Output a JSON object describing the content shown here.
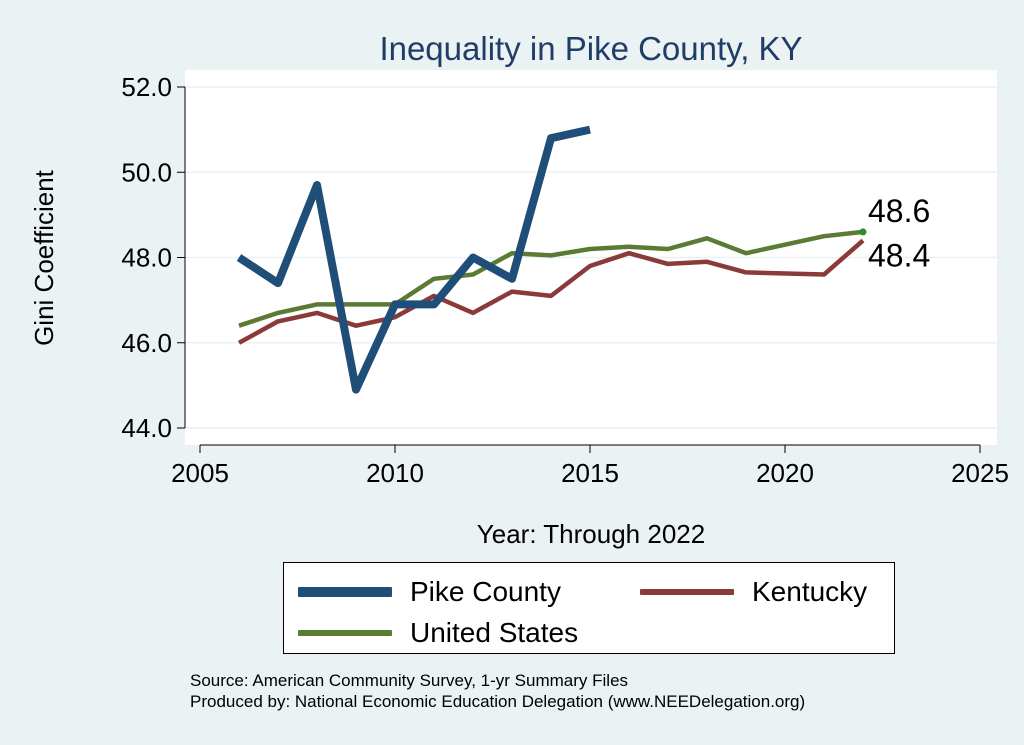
{
  "chart_data": {
    "type": "line",
    "title": "Inequality in Pike County, KY",
    "xlabel": "Year: Through 2022",
    "ylabel": "Gini Coefficient",
    "xlim": [
      2005,
      2025
    ],
    "ylim": [
      44.0,
      52.0
    ],
    "xticks": [
      2005,
      2010,
      2015,
      2020,
      2025
    ],
    "yticks": [
      44.0,
      46.0,
      48.0,
      50.0,
      52.0
    ],
    "ytick_labels": [
      "44.0",
      "46.0",
      "48.0",
      "50.0",
      "52.0"
    ],
    "grid": true,
    "legend_position": "bottom",
    "series": [
      {
        "name": "Pike County",
        "color": "#1f4e79",
        "x": [
          2006,
          2007,
          2008,
          2009,
          2010,
          2011,
          2012,
          2013,
          2014,
          2015
        ],
        "values": [
          48.0,
          47.4,
          49.7,
          44.9,
          46.9,
          46.9,
          48.0,
          47.5,
          50.8,
          51.0
        ]
      },
      {
        "name": "Kentucky",
        "color": "#8b3a3a",
        "x": [
          2006,
          2007,
          2008,
          2009,
          2010,
          2011,
          2012,
          2013,
          2014,
          2015,
          2016,
          2017,
          2018,
          2019,
          2021,
          2022
        ],
        "values": [
          46.0,
          46.5,
          46.7,
          46.4,
          46.6,
          47.1,
          46.7,
          47.2,
          47.1,
          47.8,
          48.1,
          47.85,
          47.9,
          47.65,
          47.6,
          48.4
        ]
      },
      {
        "name": "United States",
        "color": "#5b7a34",
        "x": [
          2006,
          2007,
          2008,
          2009,
          2010,
          2011,
          2012,
          2013,
          2014,
          2015,
          2016,
          2017,
          2018,
          2019,
          2021,
          2022
        ],
        "values": [
          46.4,
          46.7,
          46.9,
          46.9,
          46.9,
          47.5,
          47.6,
          48.1,
          48.05,
          48.2,
          48.25,
          48.2,
          48.45,
          48.1,
          48.5,
          48.6
        ]
      }
    ],
    "annotations": [
      {
        "text": "48.6",
        "x": 2022,
        "y": 48.6
      },
      {
        "text": "48.4",
        "x": 2022,
        "y": 48.4
      }
    ]
  },
  "footer": {
    "source": "Source: American Community Survey, 1-yr Summary Files",
    "produced": "Produced by: National Economic Education Delegation (www.NEEDelegation.org)"
  }
}
